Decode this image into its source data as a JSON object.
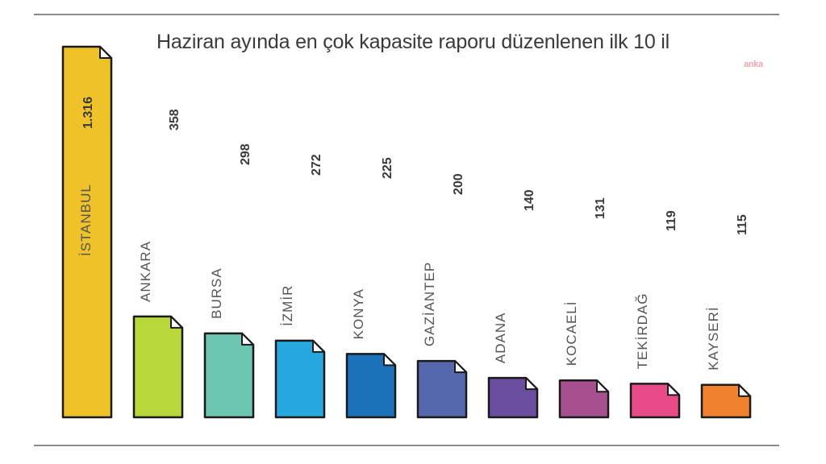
{
  "chart_data": {
    "type": "bar",
    "title": "Haziran ayında en çok kapasite raporu düzenlenen ilk 10 il",
    "categories": [
      "İSTANBUL",
      "ANKARA",
      "BURSA",
      "İZMİR",
      "KONYA",
      "GAZİANTEP",
      "ADANA",
      "KOCAELİ",
      "TEKİRDAĞ",
      "KAYSERİ"
    ],
    "values": [
      1316,
      358,
      298,
      272,
      225,
      200,
      140,
      131,
      119,
      115
    ],
    "value_labels": [
      "1.316",
      "358",
      "298",
      "272",
      "225",
      "200",
      "140",
      "131",
      "119",
      "115"
    ],
    "colors": [
      "#efc22a",
      "#b8d83a",
      "#6dc6b2",
      "#26a7de",
      "#1b72b8",
      "#5567ad",
      "#6a4ea0",
      "#a8508f",
      "#e94a88",
      "#f0822f"
    ],
    "xlabel": "",
    "ylabel": "",
    "grid": false,
    "legend": "none"
  },
  "logo_text": "anka"
}
